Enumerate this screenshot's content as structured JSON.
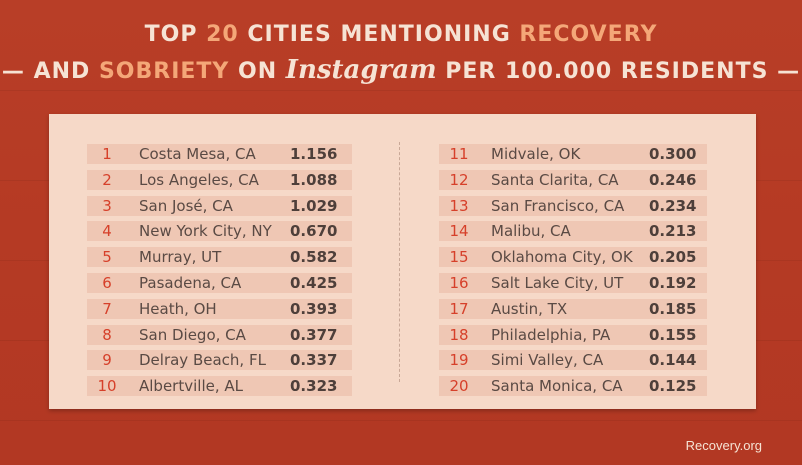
{
  "title": {
    "line1_a": "TOP ",
    "line1_num": "20",
    "line1_b": " CITIES MENTIONING ",
    "line1_hl": "RECOVERY",
    "line2_a": "— AND ",
    "line2_hl": "SOBRIETY",
    "line2_b": " ON ",
    "line2_insta": "Instagram",
    "line2_c": " PER 100.000 RESIDENTS —"
  },
  "left": [
    {
      "rank": "1",
      "city": "Costa Mesa, CA",
      "value": "1.156"
    },
    {
      "rank": "2",
      "city": "Los Angeles, CA",
      "value": "1.088"
    },
    {
      "rank": "3",
      "city": "San José, CA",
      "value": "1.029"
    },
    {
      "rank": "4",
      "city": "New York City, NY",
      "value": "0.670"
    },
    {
      "rank": "5",
      "city": "Murray, UT",
      "value": "0.582"
    },
    {
      "rank": "6",
      "city": "Pasadena, CA",
      "value": "0.425"
    },
    {
      "rank": "7",
      "city": "Heath, OH",
      "value": "0.393"
    },
    {
      "rank": "8",
      "city": "San Diego, CA",
      "value": "0.377"
    },
    {
      "rank": "9",
      "city": "Delray Beach, FL",
      "value": "0.337"
    },
    {
      "rank": "10",
      "city": "Albertville, AL",
      "value": "0.323"
    }
  ],
  "right": [
    {
      "rank": "11",
      "city": "Midvale, OK",
      "value": "0.300"
    },
    {
      "rank": "12",
      "city": "Santa Clarita, CA",
      "value": "0.246"
    },
    {
      "rank": "13",
      "city": "San Francisco, CA",
      "value": "0.234"
    },
    {
      "rank": "14",
      "city": "Malibu, CA",
      "value": "0.213"
    },
    {
      "rank": "15",
      "city": "Oklahoma City, OK",
      "value": "0.205"
    },
    {
      "rank": "16",
      "city": "Salt Lake City, UT",
      "value": "0.192"
    },
    {
      "rank": "17",
      "city": "Austin, TX",
      "value": "0.185"
    },
    {
      "rank": "18",
      "city": "Philadelphia, PA",
      "value": "0.155"
    },
    {
      "rank": "19",
      "city": "Simi Valley, CA",
      "value": "0.144"
    },
    {
      "rank": "20",
      "city": "Santa Monica, CA",
      "value": "0.125"
    }
  ],
  "footer": "Recovery.org",
  "colors": {
    "background": "#b53a24",
    "panel": "#f6d9c8",
    "row_band": "#efc7b4",
    "rank": "#d6402a",
    "highlight": "#f4a778"
  }
}
